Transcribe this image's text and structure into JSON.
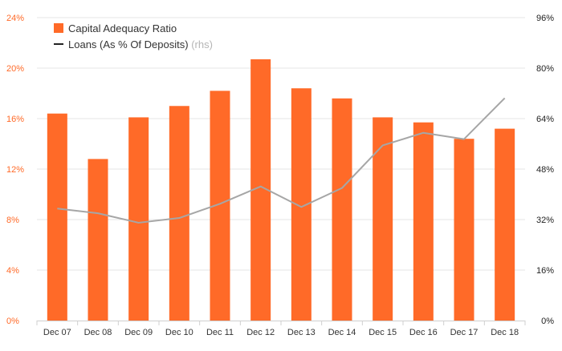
{
  "chart_data": {
    "type": "bar",
    "categories": [
      "Dec 07",
      "Dec 08",
      "Dec 09",
      "Dec 10",
      "Dec 11",
      "Dec 12",
      "Dec 13",
      "Dec 14",
      "Dec 15",
      "Dec 16",
      "Dec 17",
      "Dec 18"
    ],
    "series": [
      {
        "name": "Capital Adequacy Ratio",
        "type": "bar",
        "axis": "left",
        "color": "#ff6a28",
        "values": [
          16.4,
          12.8,
          16.1,
          17.0,
          18.2,
          20.7,
          18.4,
          17.6,
          16.1,
          15.7,
          14.4,
          15.2
        ]
      },
      {
        "name": "Loans (As % Of Deposits)",
        "name_suffix": "(rhs)",
        "type": "line",
        "axis": "right",
        "color": "#a6a6a6",
        "values": [
          35.5,
          34.0,
          31.0,
          32.5,
          37.0,
          42.5,
          36.0,
          42.0,
          55.5,
          59.5,
          57.5,
          70.5
        ]
      }
    ],
    "y_left": {
      "min": 0,
      "max": 24,
      "ticks": [
        "0%",
        "4%",
        "8%",
        "12%",
        "16%",
        "20%",
        "24%"
      ],
      "tick_color": "#ff6a28"
    },
    "y_right": {
      "min": 0,
      "max": 96,
      "ticks": [
        "0%",
        "16%",
        "32%",
        "48%",
        "64%",
        "80%",
        "96%"
      ]
    },
    "grid": true,
    "legend_position": "top-left",
    "title": "",
    "xlabel": "",
    "ylabel": ""
  }
}
